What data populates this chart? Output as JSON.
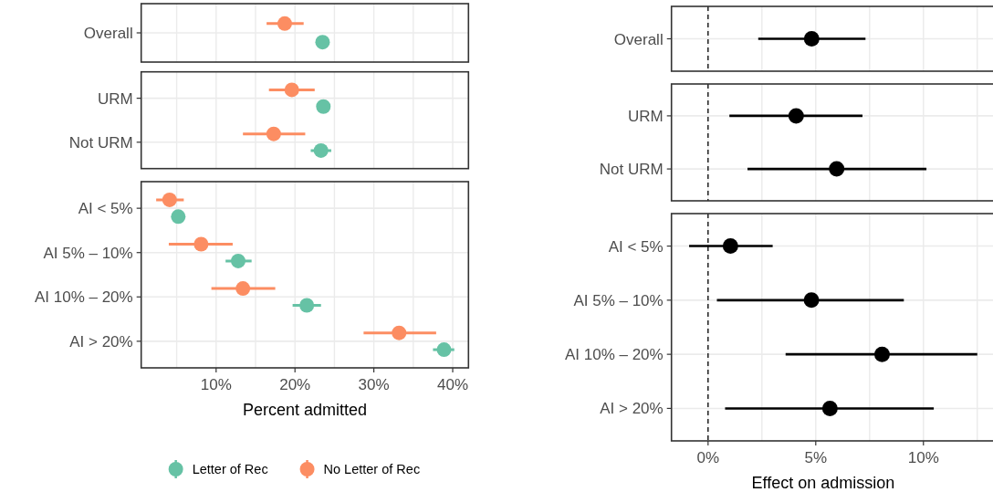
{
  "chart_data": [
    {
      "type": "scatter",
      "orientation": "horizontal",
      "marker": "circle",
      "grid": true,
      "tick_labels": "y",
      "categories": [
        "Overall"
      ],
      "xlim": [
        0.5,
        42
      ],
      "xticks": [
        {
          "value": 5,
          "label": null
        },
        {
          "value": 10,
          "label": null
        },
        {
          "value": 15,
          "label": null
        },
        {
          "value": 20,
          "label": null
        },
        {
          "value": 25,
          "label": null
        },
        {
          "value": 30,
          "label": null
        },
        {
          "value": 35,
          "label": null
        },
        {
          "value": 40,
          "label": null
        }
      ],
      "series": [
        {
          "color": "#66c2a5",
          "values": [
            23.5
          ],
          "errors": [
            null
          ]
        },
        {
          "color": "#fc8d62",
          "values": [
            18.7
          ],
          "errors": [
            [
              16.4,
              21.1
            ]
          ]
        }
      ]
    },
    {
      "type": "scatter",
      "orientation": "horizontal",
      "marker": "circle",
      "grid": true,
      "tick_labels": "y",
      "categories": [
        "URM",
        "Not URM"
      ],
      "xlim": [
        0.5,
        42
      ],
      "xticks": [
        {
          "value": 5,
          "label": null
        },
        {
          "value": 10,
          "label": null
        },
        {
          "value": 15,
          "label": null
        },
        {
          "value": 20,
          "label": null
        },
        {
          "value": 25,
          "label": null
        },
        {
          "value": 30,
          "label": null
        },
        {
          "value": 35,
          "label": null
        },
        {
          "value": 40,
          "label": null
        }
      ],
      "series": [
        {
          "color": "#66c2a5",
          "values": [
            23.6,
            23.3
          ],
          "errors": [
            null,
            [
              22.0,
              24.6
            ]
          ]
        },
        {
          "color": "#fc8d62",
          "values": [
            19.6,
            17.3
          ],
          "errors": [
            [
              16.7,
              22.5
            ],
            [
              13.4,
              21.3
            ]
          ]
        }
      ]
    },
    {
      "type": "scatter",
      "orientation": "horizontal",
      "marker": "circle",
      "grid": true,
      "legend": "bottom",
      "xlabel": "Percent admitted",
      "categories": [
        "AI < 5%",
        "AI 5% – 10%",
        "AI 10% – 20%",
        "AI > 20%"
      ],
      "xlim": [
        0.5,
        42
      ],
      "xticks": [
        {
          "value": 5,
          "label": null
        },
        {
          "value": 10,
          "label": "10%"
        },
        {
          "value": 15,
          "label": null
        },
        {
          "value": 20,
          "label": "20%"
        },
        {
          "value": 25,
          "label": null
        },
        {
          "value": 30,
          "label": "30%"
        },
        {
          "value": 35,
          "label": null
        },
        {
          "value": 40,
          "label": "40%"
        }
      ],
      "series": [
        {
          "name": "Letter of Rec",
          "color": "#66c2a5",
          "values": [
            5.2,
            12.8,
            21.5,
            38.9
          ],
          "errors": [
            null,
            [
              11.2,
              14.5
            ],
            [
              19.7,
              23.3
            ],
            [
              37.5,
              40.2
            ]
          ]
        },
        {
          "name": "No Letter of Rec",
          "color": "#fc8d62",
          "values": [
            4.1,
            8.1,
            13.4,
            33.2
          ],
          "errors": [
            [
              2.4,
              5.9
            ],
            [
              4.0,
              12.1
            ],
            [
              9.4,
              17.5
            ],
            [
              28.7,
              37.9
            ]
          ]
        }
      ]
    },
    {
      "type": "scatter",
      "orientation": "horizontal",
      "marker": "circle",
      "grid": true,
      "tick_labels": "y",
      "categories": [
        "Overall"
      ],
      "xlim": [
        -1.7,
        13.4
      ],
      "xticks": [
        {
          "value": 0,
          "label": null
        },
        {
          "value": 2.5,
          "label": null
        },
        {
          "value": 5,
          "label": null
        },
        {
          "value": 7.5,
          "label": null
        },
        {
          "value": 10,
          "label": null
        },
        {
          "value": 12.5,
          "label": null
        }
      ],
      "ref_lines": [
        {
          "axis": "x",
          "value": 0,
          "line_style": "dashed",
          "color": "#000000"
        }
      ],
      "series": [
        {
          "color": "#000000",
          "values": [
            4.81
          ],
          "errors": [
            [
              2.33,
              7.31
            ]
          ]
        }
      ]
    },
    {
      "type": "scatter",
      "orientation": "horizontal",
      "marker": "circle",
      "grid": true,
      "tick_labels": "y",
      "categories": [
        "URM",
        "Not URM"
      ],
      "xlim": [
        -1.7,
        13.4
      ],
      "xticks": [
        {
          "value": 0,
          "label": null
        },
        {
          "value": 2.5,
          "label": null
        },
        {
          "value": 5,
          "label": null
        },
        {
          "value": 7.5,
          "label": null
        },
        {
          "value": 10,
          "label": null
        },
        {
          "value": 12.5,
          "label": null
        }
      ],
      "ref_lines": [
        {
          "axis": "x",
          "value": 0,
          "line_style": "dashed",
          "color": "#000000"
        }
      ],
      "series": [
        {
          "color": "#000000",
          "values": [
            4.09,
            5.97
          ],
          "errors": [
            [
              0.99,
              7.17
            ],
            [
              1.83,
              10.14
            ]
          ]
        }
      ]
    },
    {
      "type": "scatter",
      "orientation": "horizontal",
      "marker": "circle",
      "grid": true,
      "xlabel": "Effect on admission",
      "categories": [
        "AI < 5%",
        "AI 5% – 10%",
        "AI 10% – 20%",
        "AI > 20%"
      ],
      "xlim": [
        -1.7,
        13.4
      ],
      "xticks": [
        {
          "value": 0,
          "label": "0%"
        },
        {
          "value": 2.5,
          "label": null
        },
        {
          "value": 5,
          "label": "5%"
        },
        {
          "value": 7.5,
          "label": null
        },
        {
          "value": 10,
          "label": "10%"
        },
        {
          "value": 12.5,
          "label": null
        }
      ],
      "ref_lines": [
        {
          "axis": "x",
          "value": 0,
          "line_style": "dashed",
          "color": "#000000"
        }
      ],
      "series": [
        {
          "color": "#000000",
          "values": [
            1.04,
            4.8,
            8.08,
            5.66
          ],
          "errors": [
            [
              -0.88,
              3.0
            ],
            [
              0.41,
              9.09
            ],
            [
              3.6,
              12.5
            ],
            [
              0.79,
              10.48
            ]
          ]
        }
      ]
    }
  ]
}
